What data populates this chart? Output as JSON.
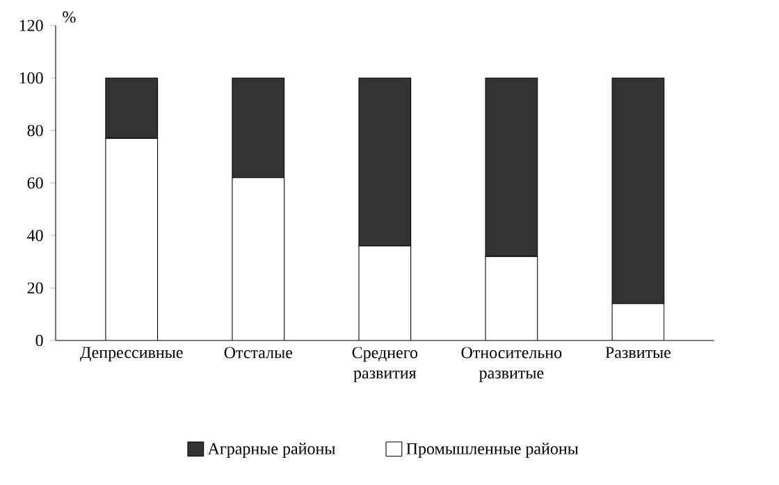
{
  "chart_data": {
    "type": "bar",
    "stacked": true,
    "ylabel": "%",
    "categories": [
      "Депрессивные",
      "Отсталые",
      "Среднего развития",
      "Относительно развитые",
      "Развитые"
    ],
    "series": [
      {
        "name": "Промышленные районы",
        "color": "#ffffff",
        "values": [
          77,
          62,
          36,
          32,
          14
        ]
      },
      {
        "name": "Аграрные районы",
        "color": "#333333",
        "values": [
          23,
          38,
          64,
          68,
          86
        ]
      }
    ],
    "ylim": [
      0,
      120
    ],
    "yticks": [
      0,
      20,
      40,
      60,
      80,
      100,
      120
    ],
    "legend": "bottom"
  }
}
